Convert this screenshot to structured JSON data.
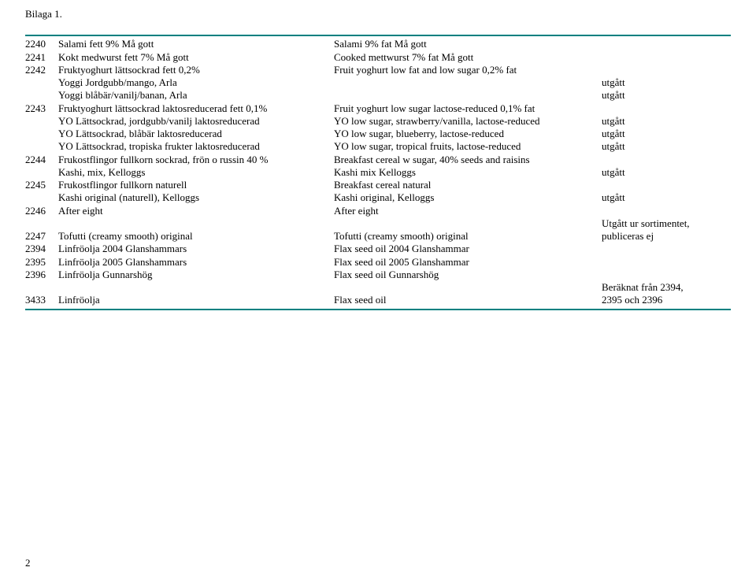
{
  "title": "Bilaga 1.",
  "page_number": "2",
  "rule_color": "#008080",
  "rows": [
    {
      "id": "2240",
      "sv": "Salami fett 9% Må gott",
      "en": "Salami 9% fat Må gott",
      "note": ""
    },
    {
      "id": "2241",
      "sv": "Kokt medwurst fett 7% Må gott",
      "en": "Cooked mettwurst 7% fat Må gott",
      "note": ""
    },
    {
      "id": "2242",
      "sv": "Fruktyoghurt lättsockrad fett 0,2%",
      "en": "Fruit yoghurt low fat and low sugar 0,2% fat",
      "note": ""
    },
    {
      "id": "",
      "sv": "Yoggi Jordgubb/mango, Arla",
      "en": "",
      "note": "utgått"
    },
    {
      "id": "",
      "sv": "Yoggi blåbär/vanilj/banan, Arla",
      "en": "",
      "note": "utgått"
    },
    {
      "id": "2243",
      "sv": "Fruktyoghurt lättsockrad laktosreducerad fett 0,1%",
      "en": "Fruit yoghurt low sugar lactose-reduced 0,1% fat",
      "note": ""
    },
    {
      "id": "",
      "sv": "YO Lättsockrad, jordgubb/vanilj laktosreducerad",
      "en": "YO low sugar, strawberry/vanilla, lactose-reduced",
      "note": "utgått"
    },
    {
      "id": "",
      "sv": "YO Lättsockrad, blåbär laktosreducerad",
      "en": "YO low sugar, blueberry, lactose-reduced",
      "note": "utgått"
    },
    {
      "id": "",
      "sv": "YO Lättsockrad, tropiska frukter laktosreducerad",
      "en": "YO low sugar, tropical fruits, lactose-reduced",
      "note": "utgått"
    },
    {
      "id": "2244",
      "sv": "Frukostflingor fullkorn sockrad, frön o russin 40 %",
      "en": "Breakfast cereal w sugar, 40% seeds and raisins",
      "note": ""
    },
    {
      "id": "",
      "sv": "Kashi, mix, Kelloggs",
      "en": "Kashi mix Kelloggs",
      "note": "utgått"
    },
    {
      "id": "2245",
      "sv": "Frukostflingor fullkorn naturell",
      "en": "Breakfast cereal natural",
      "note": ""
    },
    {
      "id": "",
      "sv": "Kashi original (naturell), Kelloggs",
      "en": "Kashi original, Kelloggs",
      "note": "utgått"
    },
    {
      "id": "2246",
      "sv": "After eight",
      "en": "After eight",
      "note": ""
    },
    {
      "id": "",
      "sv": "",
      "en": "",
      "note": "Utgått ur sortimentet,"
    },
    {
      "id": "2247",
      "sv": "Tofutti (creamy smooth) original",
      "en": "Tofutti (creamy smooth) original",
      "note": " publiceras ej"
    },
    {
      "id": "2394",
      "sv": "Linfröolja 2004 Glanshammars",
      "en": "Flax seed oil 2004 Glanshammar",
      "note": ""
    },
    {
      "id": "2395",
      "sv": "Linfröolja 2005 Glanshammars",
      "en": "Flax seed oil 2005 Glanshammar",
      "note": ""
    },
    {
      "id": "2396",
      "sv": "Linfröolja Gunnarshög",
      "en": "Flax seed oil Gunnarshög",
      "note": ""
    },
    {
      "id": "",
      "sv": "",
      "en": "",
      "note": "Beräknat från 2394,"
    },
    {
      "id": "3433",
      "sv": "Linfröolja",
      "en": "Flax seed oil",
      "note": " 2395 och 2396"
    }
  ]
}
